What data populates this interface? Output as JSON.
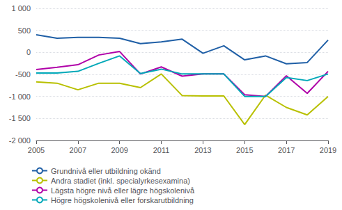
{
  "chart_data": {
    "type": "line",
    "x": [
      2005,
      2006,
      2007,
      2008,
      2009,
      2010,
      2011,
      2012,
      2013,
      2014,
      2015,
      2016,
      2017,
      2018,
      2019
    ],
    "series": [
      {
        "name": "Grundnivå eller utbildning okänd",
        "color": "#1F5FA6",
        "values": [
          400,
          320,
          340,
          340,
          320,
          200,
          240,
          300,
          -20,
          150,
          -170,
          -80,
          -260,
          -230,
          280
        ]
      },
      {
        "name": "Andra stadiet (inkl. specialyrkesexamina)",
        "color": "#B8C000",
        "values": [
          -670,
          -700,
          -850,
          -700,
          -700,
          -800,
          -490,
          -980,
          -990,
          -990,
          -1640,
          -970,
          -1250,
          -1420,
          -1000
        ]
      },
      {
        "name": "Lägsta högre nivå eller lägre högskolenivå",
        "color": "#B000A8",
        "values": [
          -390,
          -340,
          -280,
          -60,
          20,
          -490,
          -330,
          -540,
          -490,
          -490,
          -960,
          -1000,
          -530,
          -930,
          -430
        ]
      },
      {
        "name": "Högre högskolenivå eller forskarutbildning",
        "color": "#00A8B8",
        "values": [
          -470,
          -470,
          -430,
          -250,
          -80,
          -480,
          -380,
          -490,
          -490,
          -490,
          -1000,
          -1000,
          -570,
          -640,
          -490
        ]
      }
    ],
    "xlim": [
      2005,
      2019
    ],
    "xticks": [
      2005,
      2007,
      2009,
      2011,
      2013,
      2015,
      2017,
      2019
    ],
    "ylim": [
      -2000,
      1000
    ],
    "yticks": [
      {
        "value": -2000,
        "label": "-2 000"
      },
      {
        "value": -1500,
        "label": "-1 500"
      },
      {
        "value": -1000,
        "label": "-1 000"
      },
      -500,
      0,
      500,
      {
        "value": 1000,
        "label": "1 000"
      }
    ],
    "grid": "y",
    "legend": "bottom"
  }
}
